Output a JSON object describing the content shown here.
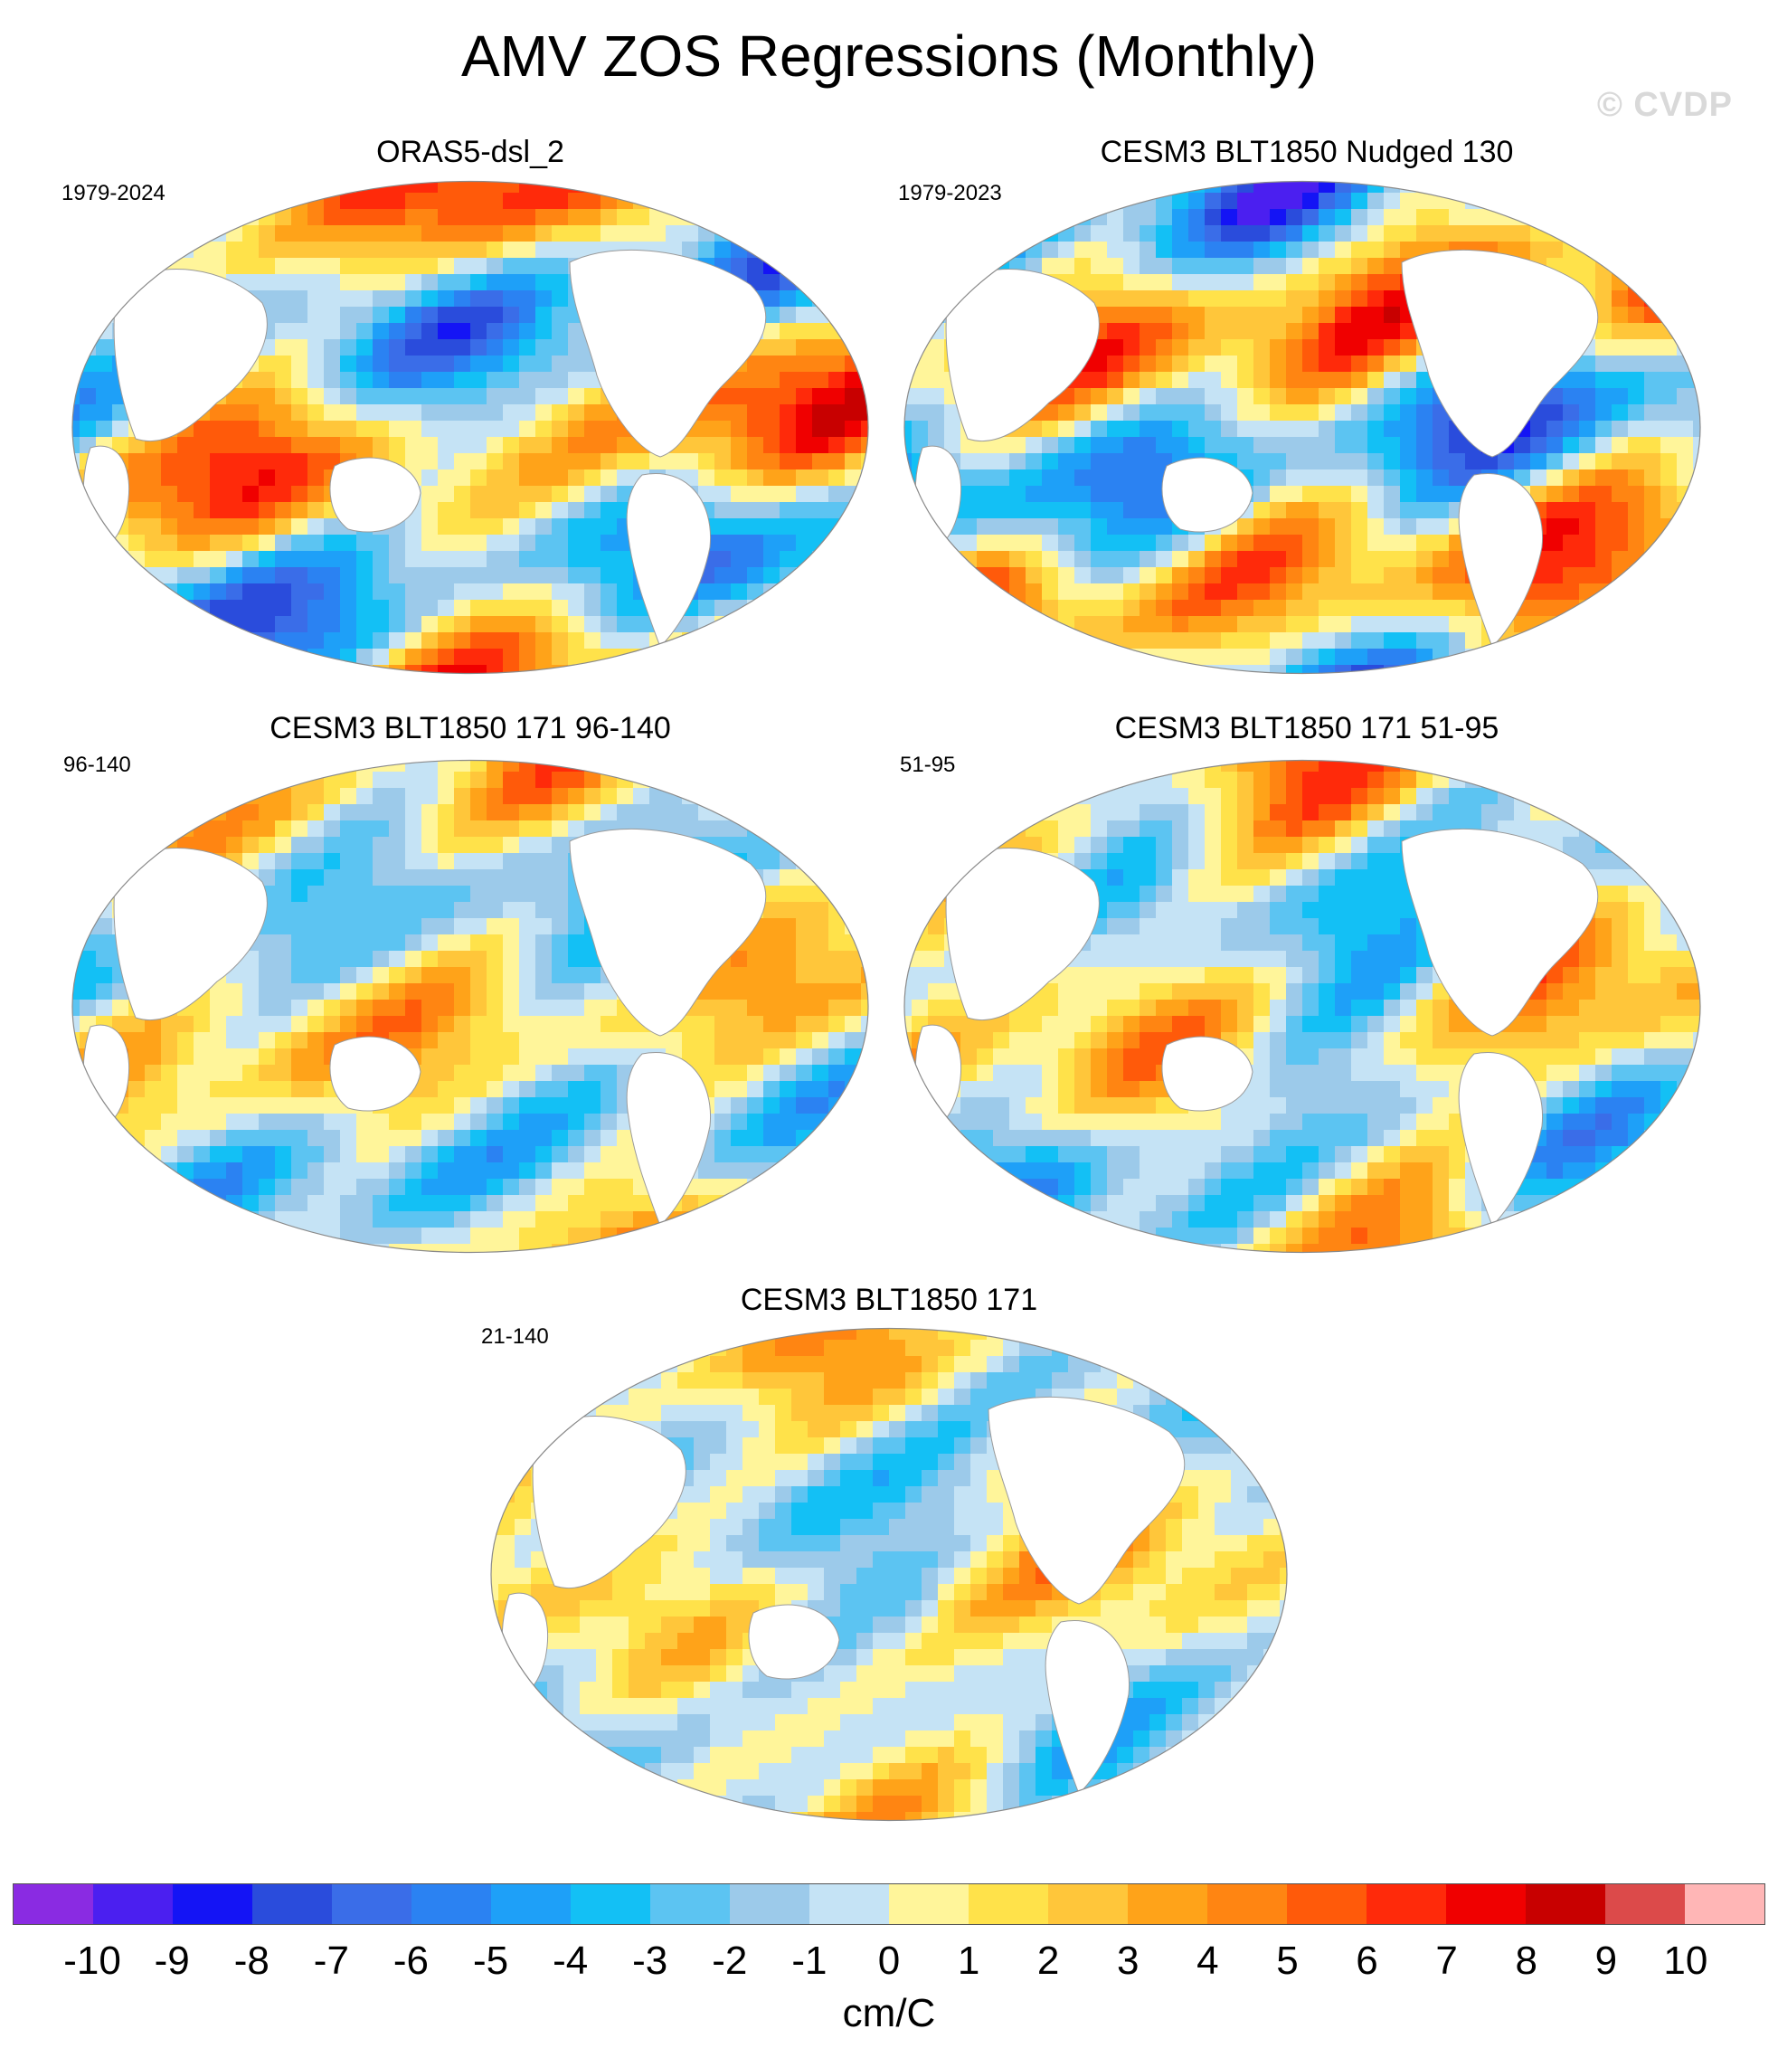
{
  "figure": {
    "title": "AMV ZOS Regressions (Monthly)",
    "watermark": "© CVDP"
  },
  "panels": [
    {
      "title": "ORAS5-dsl_2",
      "period": "1979-2024"
    },
    {
      "title": "CESM3 BLT1850 Nudged 130",
      "period": "1979-2023"
    },
    {
      "title": "CESM3 BLT1850 171 96-140",
      "period": "96-140"
    },
    {
      "title": "CESM3 BLT1850 171 51-95",
      "period": "51-95"
    },
    {
      "title": "CESM3 BLT1850 171",
      "period": "21-140"
    }
  ],
  "colorbar": {
    "ticks": [
      "-10",
      "-9",
      "-8",
      "-7",
      "-6",
      "-5",
      "-4",
      "-3",
      "-2",
      "-1",
      "0",
      "1",
      "2",
      "3",
      "4",
      "5",
      "6",
      "7",
      "8",
      "9",
      "10"
    ],
    "unit": "cm/C",
    "colors": [
      "#8a2be2",
      "#4b1ff0",
      "#1414f5",
      "#2a4cdc",
      "#3a6de8",
      "#2b82f2",
      "#1ea0f8",
      "#13c0f5",
      "#5cc4f2",
      "#9ccaea",
      "#c5e3f5",
      "#fff59a",
      "#ffe24a",
      "#ffc63a",
      "#ffa319",
      "#ff8512",
      "#ff5a0a",
      "#ff2a0a",
      "#f00000",
      "#c80000",
      "#dc4a4a",
      "#ffb6b6"
    ]
  }
}
